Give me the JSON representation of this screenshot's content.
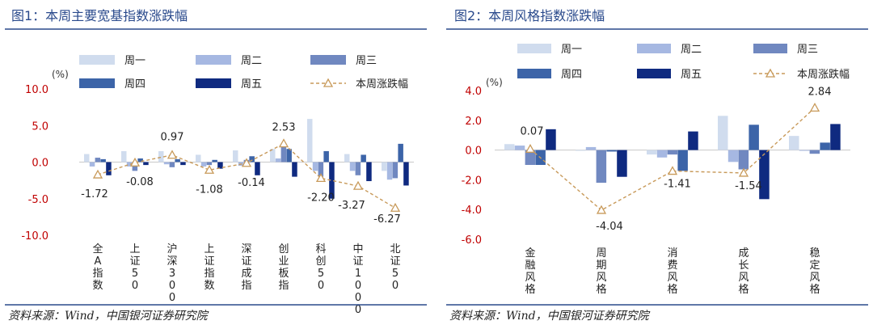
{
  "chart_data": [
    {
      "type": "bar",
      "title": "图1：本周主要宽基指数涨跌幅",
      "unit_label": "(%)",
      "ylim": [
        -10,
        10
      ],
      "yticks": [
        "10.0",
        "5.0",
        "0.0",
        "-5.0",
        "-10.0"
      ],
      "categories": [
        "全A指数",
        "上证50",
        "沪深300",
        "上证指数",
        "深证成指",
        "创业板指",
        "科创50",
        "中证1000",
        "北证50"
      ],
      "series": [
        {
          "name": "周一",
          "color": "#d0dcee",
          "values": [
            1.1,
            1.5,
            1.5,
            1.0,
            1.6,
            1.8,
            5.9,
            1.1,
            -1.2
          ]
        },
        {
          "name": "周二",
          "color": "#a6b8e2",
          "values": [
            -0.6,
            -0.6,
            -0.3,
            -0.6,
            -0.5,
            0.5,
            -1.2,
            -1.2,
            -2.4
          ]
        },
        {
          "name": "周三",
          "color": "#7088c0",
          "values": [
            0.6,
            -1.2,
            -0.7,
            -0.4,
            0.3,
            2.6,
            -2.0,
            -1.8,
            -2.2
          ]
        },
        {
          "name": "周四",
          "color": "#3c64a8",
          "values": [
            0.4,
            0.5,
            0.4,
            0.3,
            0.8,
            1.8,
            1.5,
            1.0,
            2.5
          ]
        },
        {
          "name": "周五",
          "color": "#0f2a80",
          "values": [
            -1.8,
            -0.4,
            -0.4,
            -0.9,
            -1.8,
            -2.0,
            -5.0,
            -2.6,
            -3.2
          ]
        }
      ],
      "line": {
        "name": "本周涨跌幅",
        "color": "#c89a5a",
        "values": [
          -1.72,
          -0.08,
          0.97,
          -1.08,
          -0.14,
          2.53,
          -2.2,
          -3.27,
          -6.27
        ],
        "labels": [
          "-1.72",
          "-0.08",
          "0.97",
          "-1.08",
          "-0.14",
          "2.53",
          "-2.20",
          "-3.27",
          "-6.27"
        ]
      },
      "legend_position": "top",
      "source": "资料来源：Wind，中国银河证券研究院"
    },
    {
      "type": "bar",
      "title": "图2：本周风格指数涨跌幅",
      "unit_label": "(%)",
      "ylim": [
        -6,
        4
      ],
      "yticks": [
        "4.0",
        "2.0",
        "0.0",
        "-2.0",
        "-4.0",
        "-6.0"
      ],
      "categories": [
        "金融风格",
        "周期风格",
        "消费风格",
        "成长风格",
        "稳定风格"
      ],
      "series": [
        {
          "name": "周一",
          "color": "#d0dcee",
          "values": [
            0.4,
            -0.05,
            -0.3,
            2.3,
            0.95
          ]
        },
        {
          "name": "周二",
          "color": "#a6b8e2",
          "values": [
            0.3,
            0.2,
            -0.5,
            -0.8,
            -0.05
          ]
        },
        {
          "name": "周三",
          "color": "#7088c0",
          "values": [
            -1.0,
            -2.2,
            -0.3,
            -1.3,
            -0.25
          ]
        },
        {
          "name": "周四",
          "color": "#3c64a8",
          "values": [
            -1.0,
            -0.1,
            -1.4,
            1.7,
            0.5
          ]
        },
        {
          "name": "周五",
          "color": "#0f2a80",
          "values": [
            1.4,
            -1.8,
            1.25,
            -3.3,
            1.75
          ]
        }
      ],
      "line": {
        "name": "本周涨跌幅",
        "color": "#c89a5a",
        "values": [
          0.07,
          -4.04,
          -1.41,
          -1.54,
          2.84
        ],
        "labels": [
          "0.07",
          "-4.04",
          "-1.41",
          "-1.54",
          "2.84"
        ]
      },
      "legend_position": "top",
      "source": "资料来源：Wind，中国银河证券研究院"
    }
  ]
}
